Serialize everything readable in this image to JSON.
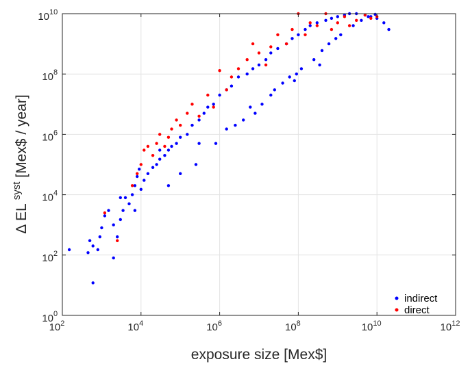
{
  "chart_data": {
    "type": "scatter",
    "xlabel": "exposure size [Mex$]",
    "ylabel_parts": {
      "prefix": "Δ EL",
      "superscript": "syst",
      "suffix": " [Mex$ / year]"
    },
    "x_scale": "log",
    "y_scale": "log",
    "xlim": [
      100,
      1000000000000
    ],
    "ylim": [
      1,
      10000000000
    ],
    "x_ticks": [
      {
        "base": "10",
        "exp": "2",
        "value": 100
      },
      {
        "base": "10",
        "exp": "4",
        "value": 10000
      },
      {
        "base": "10",
        "exp": "6",
        "value": 1000000
      },
      {
        "base": "10",
        "exp": "8",
        "value": 100000000
      },
      {
        "base": "10",
        "exp": "10",
        "value": 10000000000
      },
      {
        "base": "10",
        "exp": "12",
        "value": 1000000000000
      }
    ],
    "y_ticks": [
      {
        "base": "10",
        "exp": "0",
        "value": 1
      },
      {
        "base": "10",
        "exp": "2",
        "value": 100
      },
      {
        "base": "10",
        "exp": "4",
        "value": 10000
      },
      {
        "base": "10",
        "exp": "6",
        "value": 1000000
      },
      {
        "base": "10",
        "exp": "8",
        "value": 100000000
      },
      {
        "base": "10",
        "exp": "10",
        "value": 10000000000
      }
    ],
    "grid": true,
    "legend_position": "bottom-right",
    "series": [
      {
        "name": "indirect",
        "color": "#0000ff",
        "x": [
          150,
          450,
          500,
          600,
          800,
          900,
          1000,
          1200,
          1500,
          2000,
          2500,
          3000,
          3500,
          4000,
          5000,
          6000,
          7000,
          8000,
          10000,
          12000,
          15000,
          20000,
          25000,
          30000,
          40000,
          50000,
          60000,
          80000,
          100000,
          150000,
          200000,
          300000,
          400000,
          500000,
          700000,
          1000000,
          1500000,
          2000000,
          3000000,
          5000000,
          7000000,
          10000000,
          15000000,
          20000000,
          30000000,
          50000000,
          70000000,
          100000000,
          150000000,
          200000000,
          300000000,
          500000000,
          700000000,
          1000000000,
          1500000000,
          2000000000,
          3000000000,
          5000000000,
          7000000000,
          10000000000,
          15000000000,
          20000000000,
          600,
          3000,
          9000,
          30000,
          2000,
          7000,
          50000,
          100000,
          250000,
          800000,
          2500000,
          4000000,
          8000000,
          12000000,
          25000000,
          40000000,
          60000000,
          90000000,
          120000000,
          250000000,
          400000000,
          600000000,
          900000000,
          1200000000,
          2500000000,
          4000000000,
          6000000000,
          9000000000,
          300000,
          1500000,
          6000000,
          20000000,
          80000000,
          350000000
        ],
        "y": [
          150,
          120,
          300,
          12,
          150,
          400,
          800,
          2000,
          3000,
          80,
          400,
          1500,
          3000,
          8000,
          5000,
          10000,
          20000,
          40000,
          15000,
          30000,
          50000,
          80000,
          100000,
          150000,
          200000,
          300000,
          400000,
          500000,
          800000,
          1000000,
          2000000,
          3000000,
          5000000,
          8000000,
          10000000,
          20000000,
          30000000,
          40000000,
          80000000,
          100000000,
          150000000,
          200000000,
          300000000,
          500000000,
          700000000,
          1000000000,
          1500000000,
          2000000000,
          3000000000,
          4000000000,
          5000000000,
          6000000000,
          7000000000,
          8000000000,
          9000000000,
          10000000000,
          10000000000,
          9000000000,
          8000000000,
          7000000000,
          5000000000,
          3000000000,
          200,
          8000,
          70000,
          300000,
          1000,
          3000,
          20000,
          50000,
          100000,
          500000,
          2000000,
          3000000,
          5000000,
          10000000,
          30000000,
          50000000,
          80000000,
          100000000,
          150000000,
          300000000,
          600000000,
          1000000000,
          1500000000,
          2000000000,
          4000000000,
          6000000000,
          8000000000,
          9500000000,
          500000,
          1500000,
          8000000,
          20000000,
          60000000,
          200000000
        ]
      },
      {
        "name": "direct",
        "color": "#ff0000",
        "x": [
          1200,
          2500,
          6000,
          8000,
          10000,
          12000,
          15000,
          20000,
          25000,
          30000,
          40000,
          50000,
          60000,
          80000,
          100000,
          150000,
          200000,
          300000,
          500000,
          700000,
          1000000,
          1500000,
          2000000,
          3000000,
          5000000,
          7000000,
          10000000,
          15000000,
          20000000,
          30000000,
          50000000,
          70000000,
          100000000,
          150000000,
          200000000,
          300000000,
          500000000,
          700000000,
          1000000000,
          1500000000,
          2000000000,
          3000000000,
          5000000000,
          7000000000,
          10000000000
        ],
        "y": [
          2500,
          300,
          20000,
          50000,
          100000,
          300000,
          400000,
          200000,
          500000,
          1000000,
          400000,
          800000,
          1500000,
          3000000,
          2000000,
          5000000,
          10000000,
          4000000,
          20000000,
          8000000,
          130000000,
          30000000,
          80000000,
          150000000,
          300000000,
          1000000000,
          500000000,
          200000000,
          800000000,
          2000000000,
          1000000000,
          3000000000,
          10000000000,
          2000000000,
          5000000000,
          4000000000,
          10000000000,
          3000000000,
          5000000000,
          8000000000,
          4000000000,
          6000000000,
          9000000000,
          7000000000,
          8000000000
        ]
      }
    ]
  }
}
